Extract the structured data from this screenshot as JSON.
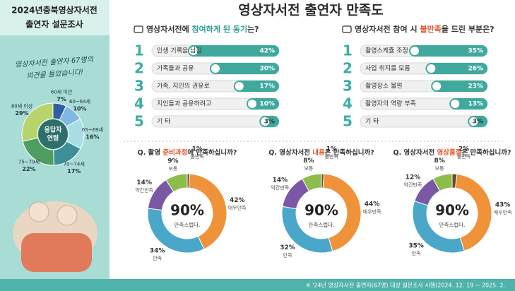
{
  "header": {
    "title_lines": [
      "2024년충북영상자서전",
      "출연자 설문조사"
    ],
    "note_lines": [
      "영상자서전 출연자 67명의",
      "의견을 들었습니다!"
    ]
  },
  "title": "영상자서전 출연자 만족도",
  "age_chart": {
    "center_lines": [
      "응답자",
      "연령"
    ],
    "categories": [
      "60세 미만",
      "60~64세",
      "65~69세",
      "70~74세",
      "75~79세",
      "80세 이상"
    ],
    "values": [
      7,
      10,
      16,
      17,
      22,
      29
    ],
    "value_labels": [
      "7%",
      "10%",
      "16%",
      "17%",
      "22%",
      "29%"
    ],
    "colors": [
      "#2f5f9e",
      "#7fb8e2",
      "#a9dde4",
      "#3d8f9a",
      "#4f9e60",
      "#b7d46a"
    ]
  },
  "rank_bars": [
    {
      "title_parts": [
        "영상자서전에 ",
        "참여하게 된 동기",
        "는?"
      ],
      "ranks": [
        1,
        2,
        3,
        4,
        5
      ],
      "labels": [
        "인생 기록을 남김",
        "가족들과 공유",
        "가족, 지인의 권유로",
        "지인들과 공유하려고",
        "기 타"
      ],
      "values": [
        42,
        30,
        17,
        10,
        3
      ],
      "value_labels": [
        "42%",
        "30%",
        "17%",
        "10%",
        "3%"
      ]
    },
    {
      "title_parts": [
        "영상자서전 참여 시 ",
        "불만족",
        "을 드린 부분은?"
      ],
      "ranks": [
        1,
        2,
        3,
        4,
        5
      ],
      "labels": [
        "촬영스케쥴 조정",
        "사업 취지를 모름",
        "촬영장소 불편",
        "촬영자의 역량 부족",
        "기 타"
      ],
      "values": [
        35,
        26,
        23,
        13,
        3
      ],
      "value_labels": [
        "35%",
        "26%",
        "23%",
        "13%",
        "3%"
      ]
    }
  ],
  "satisfaction": {
    "categories": [
      "불만족",
      "매우만족",
      "만족",
      "약간만족",
      "보통"
    ],
    "colors": [
      "#6b4a2c",
      "#f0923a",
      "#4aa7c9",
      "#7a58a6",
      "#8cbc4a"
    ],
    "center_caption": "만족스럽다.",
    "charts": [
      {
        "title_parts": [
          "Q. 촬영 ",
          "준비과정",
          "에 만족하십니까?"
        ],
        "center_label": "90%",
        "values": [
          1,
          42,
          34,
          14,
          9
        ],
        "value_labels": [
          "1%",
          "42%",
          "34%",
          "14%",
          "9%"
        ]
      },
      {
        "title_parts": [
          "Q. 영상자서전 ",
          "내용",
          "은 만족하십니까?"
        ],
        "center_label": "90%",
        "values": [
          1,
          44,
          32,
          14,
          8
        ],
        "value_labels": [
          "1%",
          "44%",
          "32%",
          "14%",
          "8%"
        ]
      },
      {
        "title_parts": [
          "Q. 영상자서전 ",
          "영상품질",
          "은 만족하십니까?"
        ],
        "center_label": "90%",
        "values": [
          2,
          43,
          35,
          12,
          8
        ],
        "value_labels": [
          "2%",
          "43%",
          "35%",
          "12%",
          "8%"
        ]
      }
    ]
  },
  "footer": "※ '24년 영상자서전 출연자(67명) 대상 설문조사 시행(2024. 12. 19 ~ 2025. 2."
}
